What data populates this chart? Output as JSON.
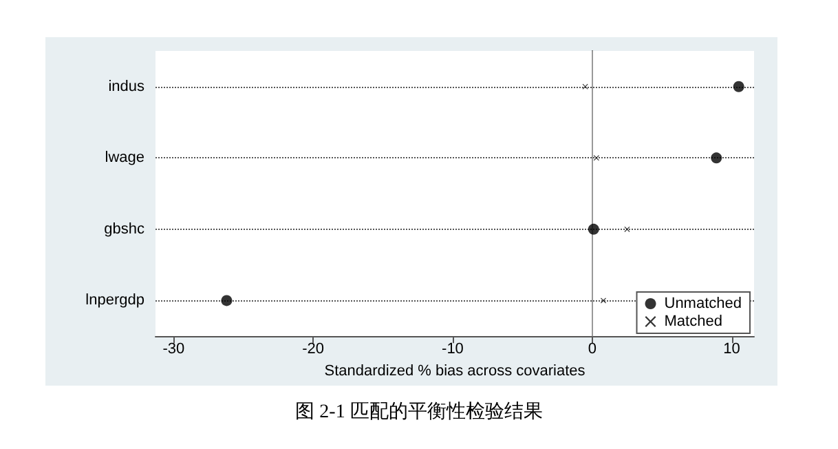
{
  "chart_data": {
    "type": "scatter",
    "orientation": "horizontal",
    "xlabel": "Standardized % bias across covariates",
    "categories": [
      "indus",
      "lwage",
      "gbshc",
      "lnpergdp"
    ],
    "series": [
      {
        "name": "Unmatched",
        "color": "#000000",
        "marker": "circle",
        "values": [
          10.5,
          8.9,
          0.1,
          -26.2
        ]
      },
      {
        "name": "Matched",
        "color": "#000000",
        "marker": "cross",
        "values": [
          -0.5,
          0.3,
          2.5,
          0.8
        ]
      }
    ],
    "xlim": [
      -31.3,
      11.6
    ],
    "xticks": [
      -30,
      -20,
      -10,
      0,
      10
    ],
    "ref_lines": [
      {
        "axis": "x",
        "value": 0,
        "color": "#999999"
      }
    ],
    "grid": "y",
    "legend": "bottom right",
    "annotations": [
      "图 2-1  匹配的平衡性检验结果"
    ]
  }
}
